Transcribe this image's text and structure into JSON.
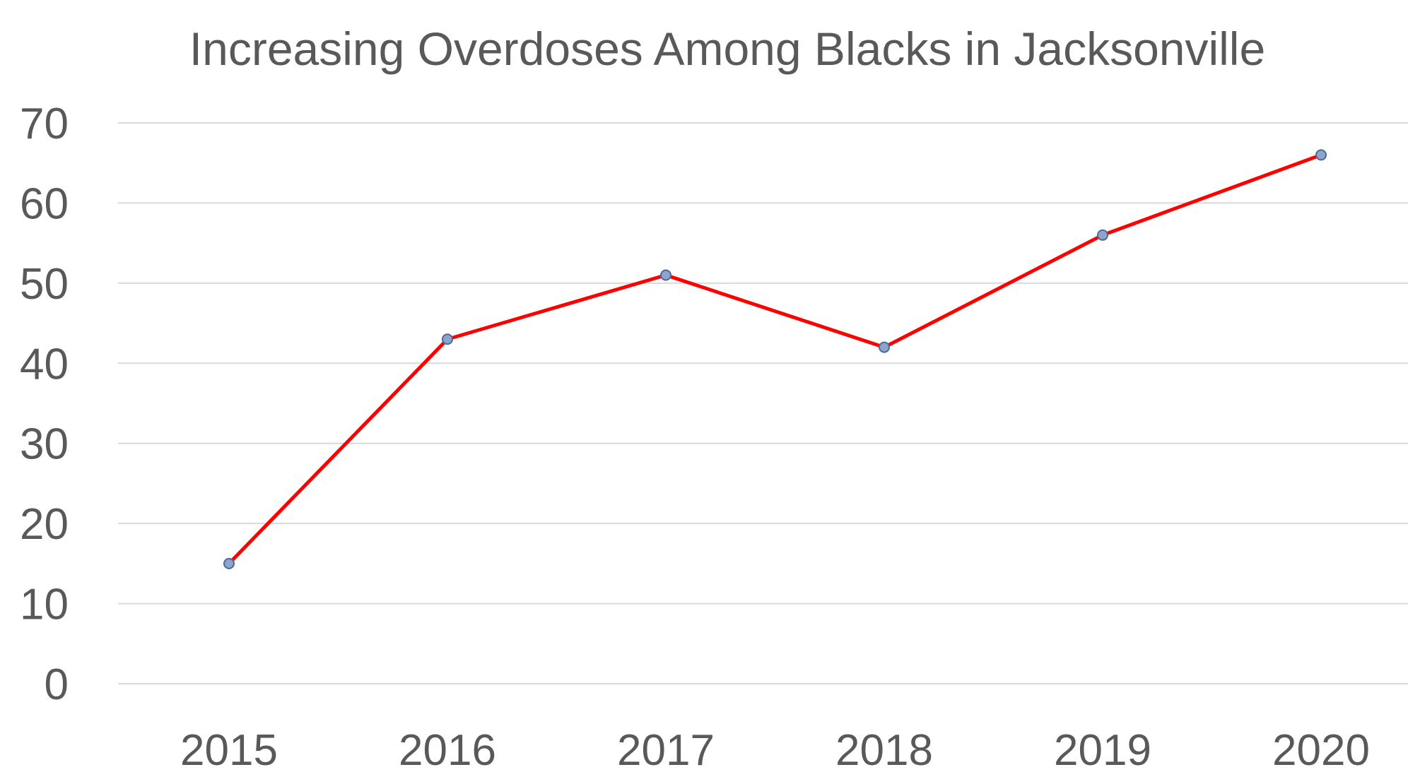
{
  "chart_data": {
    "type": "line",
    "title": "Increasing Overdoses Among Blacks in Jacksonville",
    "xlabel": "",
    "ylabel": "",
    "categories": [
      "2015",
      "2016",
      "2017",
      "2018",
      "2019",
      "2020"
    ],
    "series": [
      {
        "values": [
          15,
          43,
          51,
          42,
          56,
          66
        ]
      }
    ],
    "ylim": [
      0,
      70
    ],
    "yticks": [
      0,
      10,
      20,
      30,
      40,
      50,
      60,
      70
    ],
    "grid": "horizontal",
    "legend": "none",
    "colors": {
      "line": "#ff0000",
      "marker_fill": "#8ea4c8",
      "marker_stroke": "#4a6a9a",
      "grid": "#d9d9d9",
      "text": "#595959"
    }
  }
}
